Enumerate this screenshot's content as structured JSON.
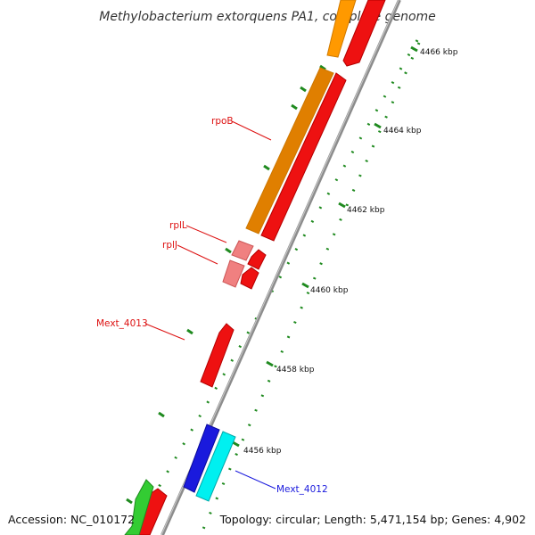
{
  "title": "Methylobacterium extorquens PA1, complete genome",
  "footer": {
    "accession": "Accession: NC_010172",
    "summary": "Topology: circular; Length: 5,471,154 bp; Genes: 4,902"
  },
  "colors": {
    "backbone": "#8c8c8c",
    "tick": "#1f8a1f",
    "orange_gene": "#ff9900",
    "red_gene": "#ee1111",
    "pink_gene": "#f08080",
    "blue_gene": "#1a1add",
    "cyan_gene": "#00f0f0",
    "green_gene": "#33cc33",
    "label_red": "#dd1111",
    "label_blue": "#1a1add"
  },
  "kbp_labels": [
    "4466 kbp",
    "4464 kbp",
    "4462 kbp",
    "4460 kbp",
    "4458 kbp",
    "4456 kbp"
  ],
  "gene_labels": {
    "rpob": "rpoB",
    "rpll": "rplL",
    "rplj": "rplJ",
    "mext4013": "Mext_4013",
    "mext4012": "Mext_4012"
  }
}
